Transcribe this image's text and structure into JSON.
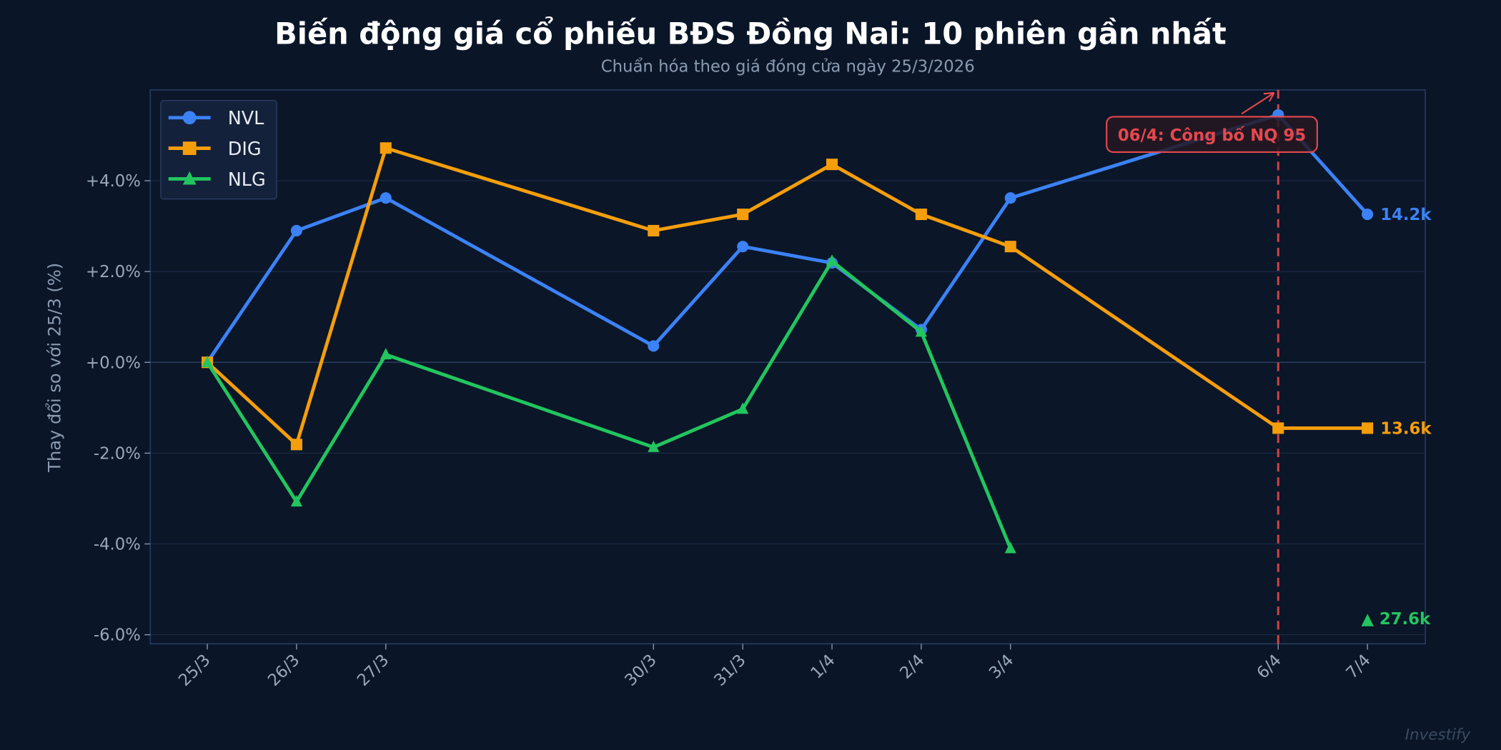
{
  "chart_data": {
    "type": "line",
    "title": "Biến động giá cổ phiếu BĐS Đồng Nai: 10 phiên gần nhất",
    "subtitle": "Chuẩn hóa theo giá đóng cửa ngày 25/3/2026",
    "xlabel": "",
    "ylabel": "Thay đổi so với 25/3 (%)",
    "x": [
      "2026-03-25",
      "2026-03-26",
      "2026-03-27",
      "2026-03-30",
      "2026-03-31",
      "2026-04-01",
      "2026-04-02",
      "2026-04-03",
      "2026-04-06",
      "2026-04-07"
    ],
    "x_tick_labels": [
      "25/3",
      "26/3",
      "27/3",
      "30/3",
      "31/3",
      "1/4",
      "2/4",
      "3/4",
      "6/4",
      "7/4"
    ],
    "xlim": [
      "2026-03-24T08:40",
      "2026-04-07T15:35"
    ],
    "ylim": [
      -6.2,
      6.0
    ],
    "y_ticks": [
      {
        "value": 4,
        "label": "+4.0%"
      },
      {
        "value": 2,
        "label": "+2.0%"
      },
      {
        "value": 0,
        "label": "+0.0%"
      },
      {
        "value": -2,
        "label": "-2.0%"
      },
      {
        "value": -4,
        "label": "-4.0%"
      },
      {
        "value": -6,
        "label": "-6.0%"
      }
    ],
    "grid": true,
    "legend_position": "top-left",
    "series": [
      {
        "name": "NVL",
        "color": "#3b82f6",
        "marker": "circle",
        "values": [
          0,
          2.9,
          3.62,
          0.36,
          2.55,
          2.19,
          0.72,
          3.62,
          5.45,
          3.26
        ],
        "end_label": "14.2k",
        "end_label_value": 3.26
      },
      {
        "name": "DIG",
        "color": "#f59e0b",
        "marker": "square",
        "values": [
          0,
          -1.81,
          4.72,
          2.9,
          3.26,
          4.36,
          3.26,
          2.55,
          -1.45,
          -1.45
        ],
        "end_label": "13.6k",
        "end_label_value": -1.45
      },
      {
        "name": "NLG",
        "color": "#22c55e",
        "marker": "triangle",
        "values": [
          0,
          -3.07,
          0.17,
          -1.87,
          -1.03,
          2.23,
          0.67,
          -4.1,
          null,
          null
        ],
        "end_label": "▲ 27.6k",
        "end_label_value": -5.64
      }
    ],
    "annotation": {
      "text": "06/4: Công bố NQ 95",
      "x": "2026-04-06",
      "color": "#e5484d"
    },
    "watermark": "Investify"
  }
}
